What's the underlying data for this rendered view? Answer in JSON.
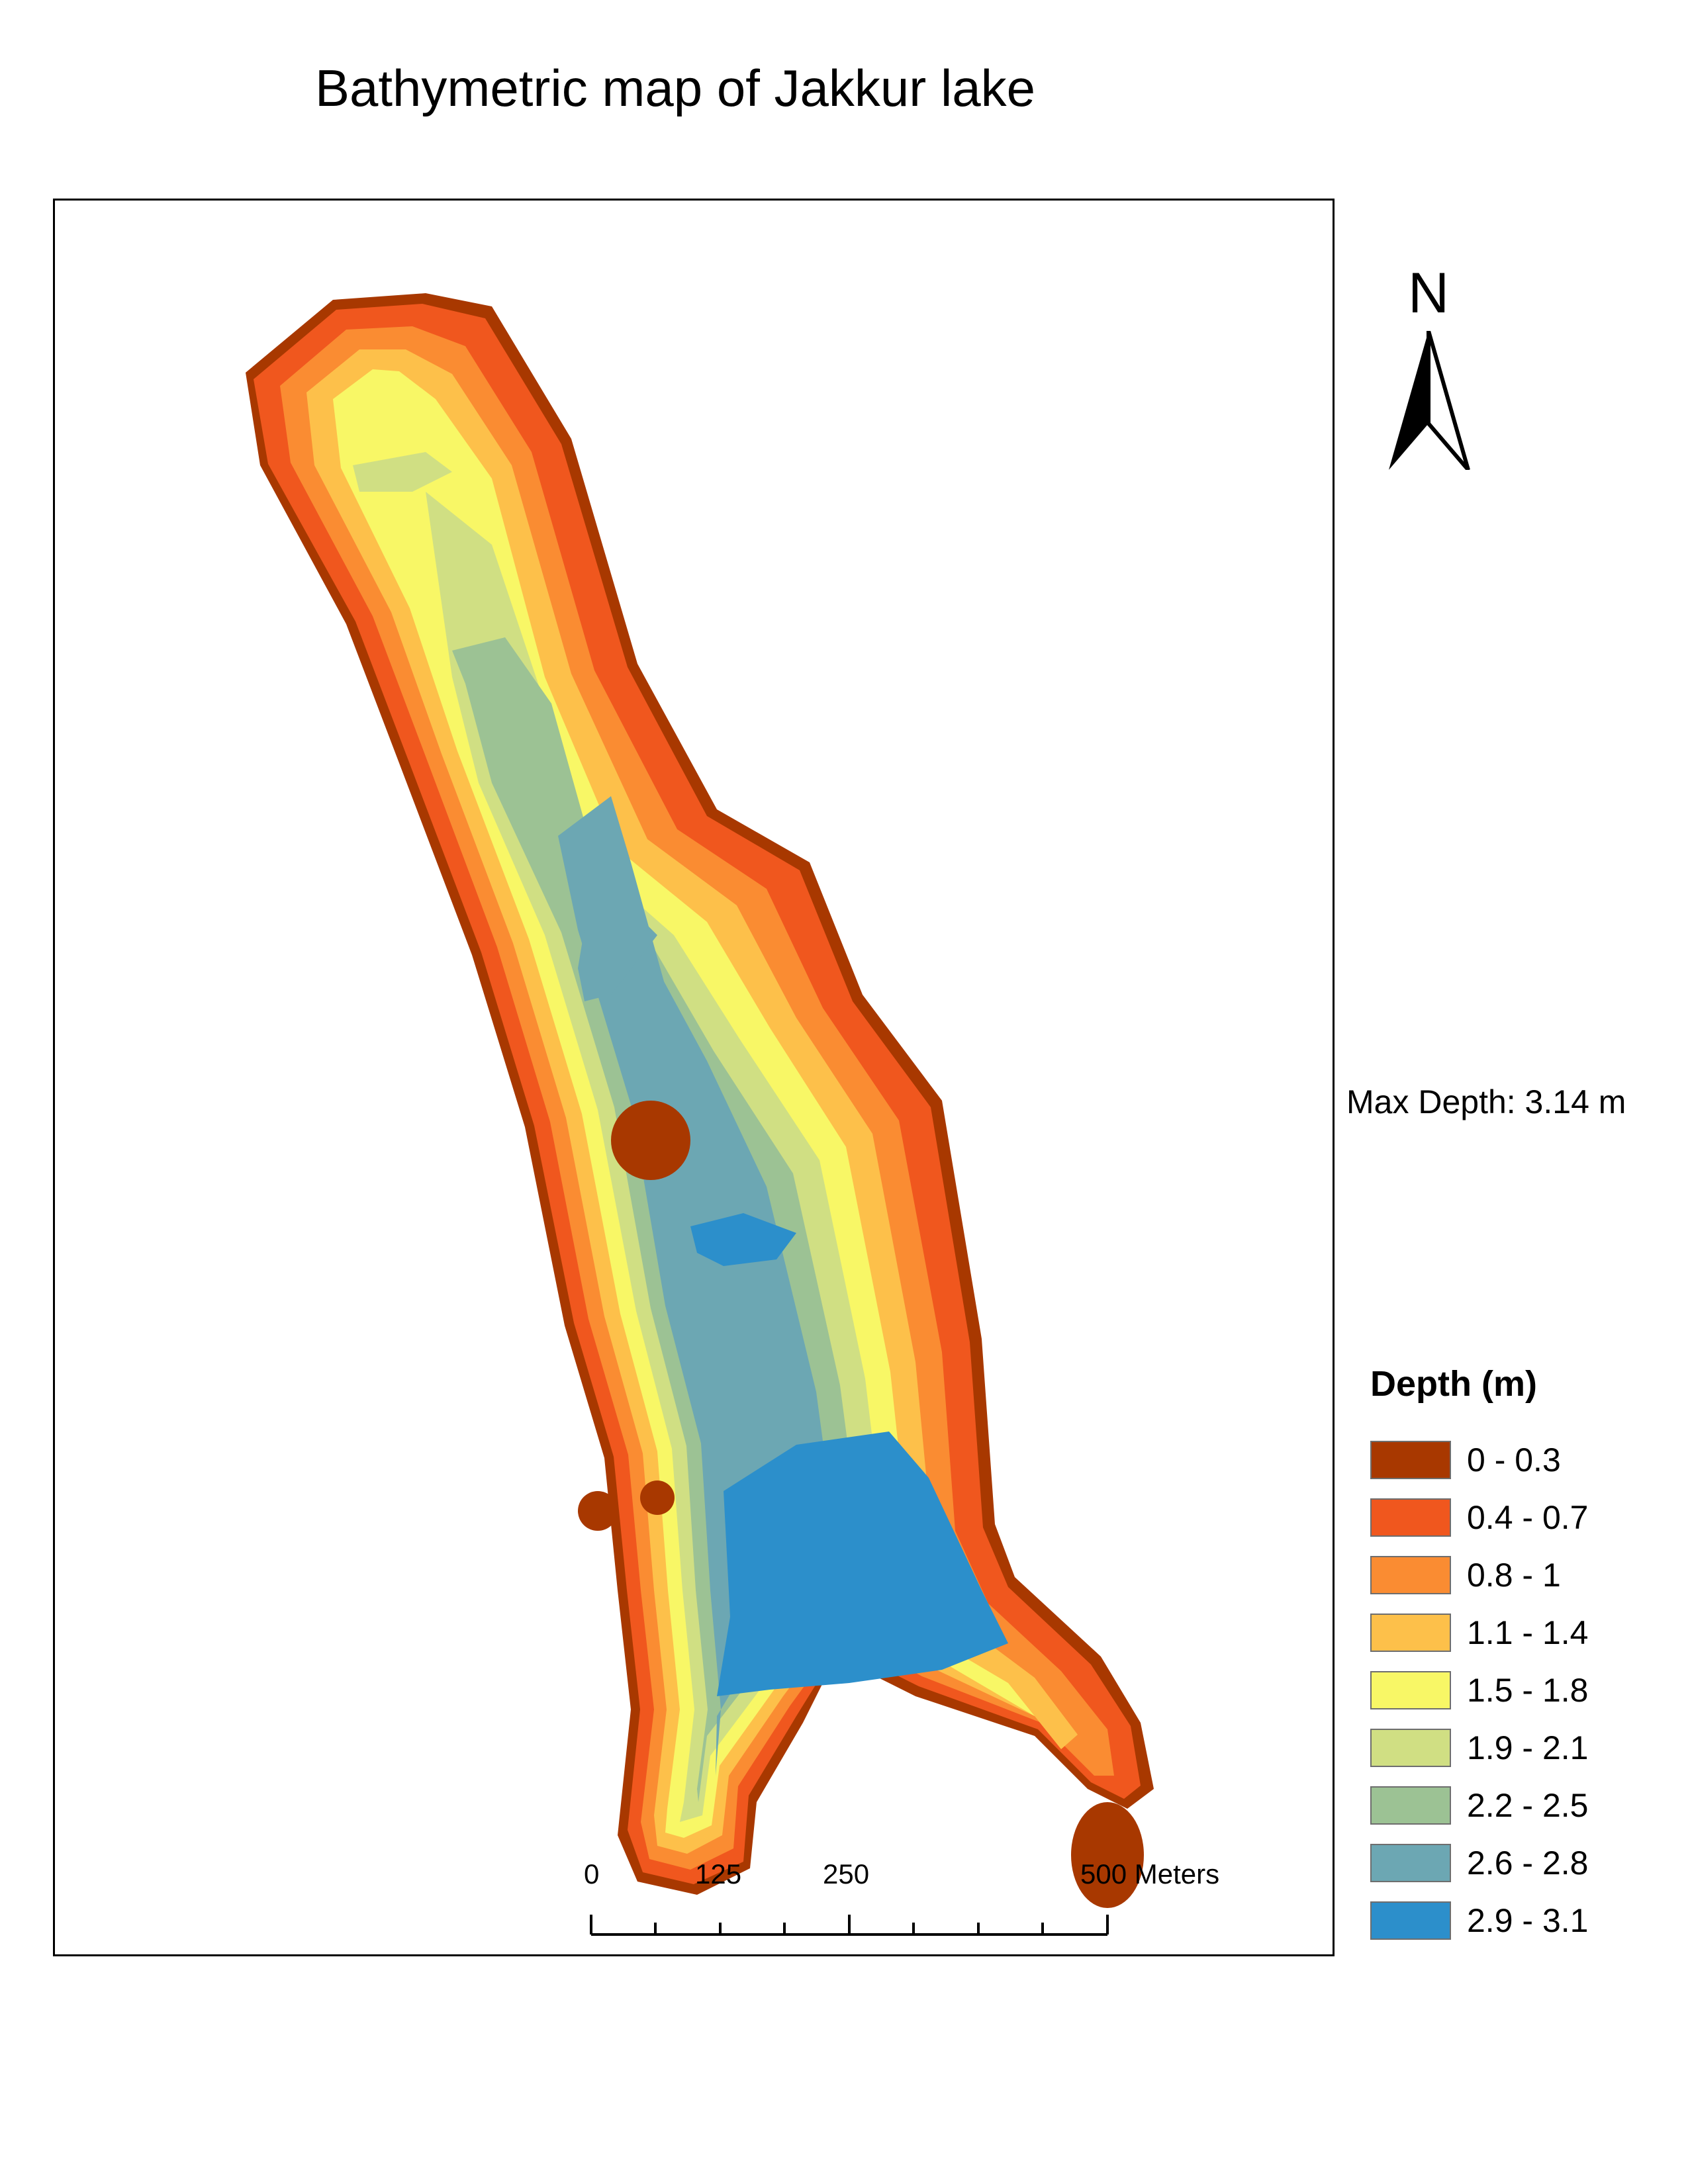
{
  "title": "Bathymetric map of Jakkur lake",
  "north_arrow": {
    "label": "N"
  },
  "max_depth": "Max Depth: 3.14 m",
  "legend": {
    "title": "Depth (m)",
    "items": [
      {
        "label": "0 - 0.3",
        "color": "#a83800"
      },
      {
        "label": "0.4 - 0.7",
        "color": "#f0571e"
      },
      {
        "label": "0.8 - 1",
        "color": "#fa8c32"
      },
      {
        "label": "1.1 - 1.4",
        "color": "#fdc04a"
      },
      {
        "label": "1.5 - 1.8",
        "color": "#f8f766"
      },
      {
        "label": "1.9 - 2.1",
        "color": "#d0df83"
      },
      {
        "label": "2.2 - 2.5",
        "color": "#9cc294"
      },
      {
        "label": "2.6 - 2.8",
        "color": "#6ca7b3"
      },
      {
        "label": "2.9 - 3.1",
        "color": "#2c8fcb"
      }
    ]
  },
  "scale_bar": {
    "labels": [
      "0",
      "125",
      "250",
      "500 Meters"
    ],
    "unit": "Meters"
  }
}
